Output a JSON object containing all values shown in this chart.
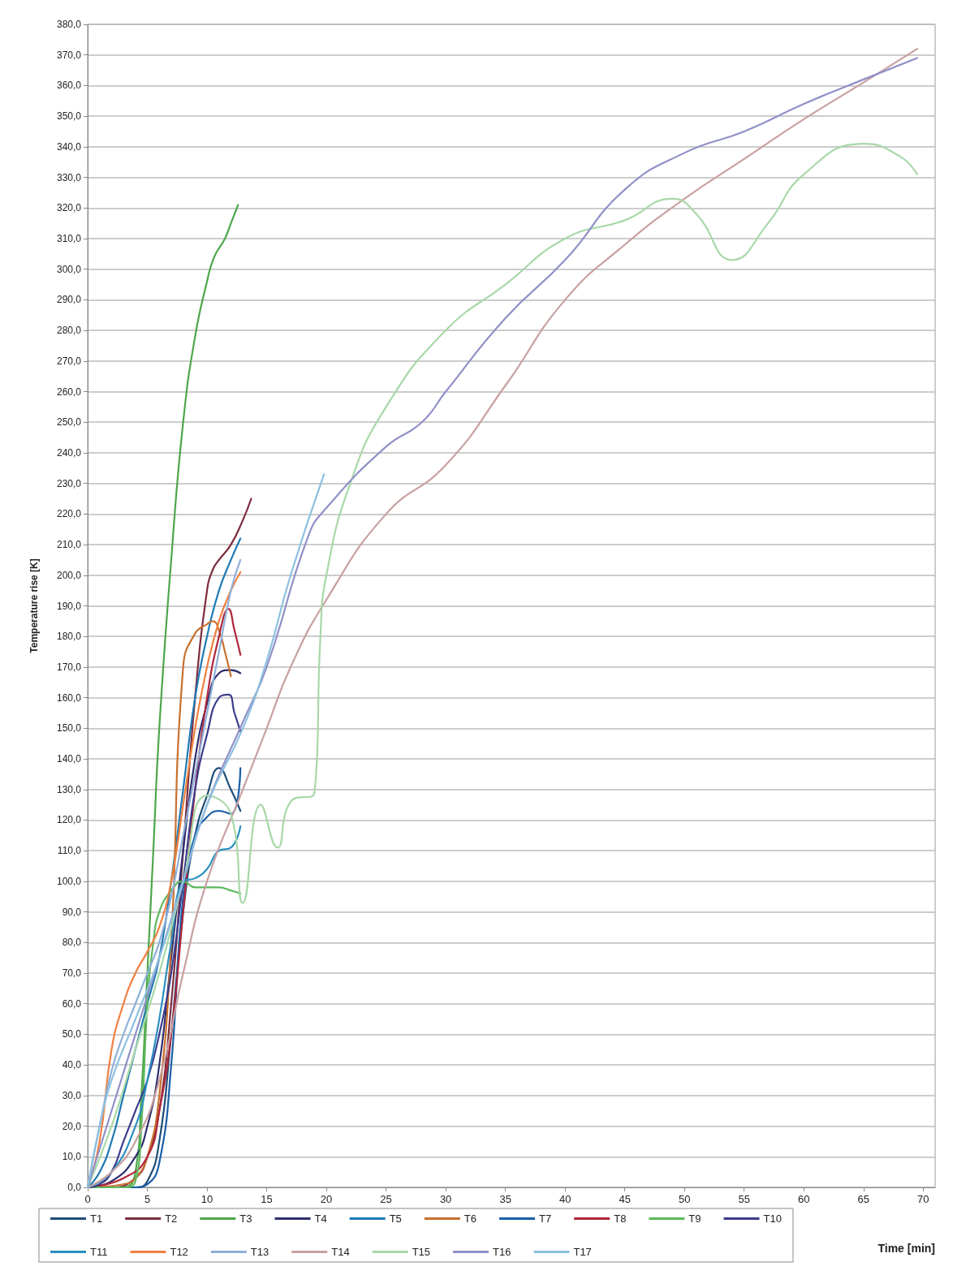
{
  "chart_data": {
    "type": "line",
    "xlabel": "Time [min]",
    "ylabel": "Temperature rise [K]",
    "xlim": [
      0,
      71
    ],
    "xticks": [
      0,
      5,
      10,
      15,
      20,
      25,
      30,
      35,
      40,
      45,
      50,
      55,
      60,
      65,
      70
    ],
    "ylim": [
      0,
      380
    ],
    "yticks": [
      {
        "value": 0,
        "label": "0,0"
      },
      {
        "value": 10,
        "label": "10,0"
      },
      {
        "value": 20,
        "label": "20,0"
      },
      {
        "value": 30,
        "label": "30,0"
      },
      {
        "value": 40,
        "label": "40,0"
      },
      {
        "value": 50,
        "label": "50,0"
      },
      {
        "value": 60,
        "label": "60,0"
      },
      {
        "value": 70,
        "label": "70,0"
      },
      {
        "value": 80,
        "label": "80,0"
      },
      {
        "value": 90,
        "label": "90,0"
      },
      {
        "value": 100,
        "label": "100,0"
      },
      {
        "value": 110,
        "label": "110,0"
      },
      {
        "value": 120,
        "label": "120,0"
      },
      {
        "value": 130,
        "label": "130,0"
      },
      {
        "value": 140,
        "label": "140,0"
      },
      {
        "value": 150,
        "label": "150,0"
      },
      {
        "value": 160,
        "label": "160,0"
      },
      {
        "value": 170,
        "label": "170,0"
      },
      {
        "value": 180,
        "label": "180,0"
      },
      {
        "value": 190,
        "label": "190,0"
      },
      {
        "value": 200,
        "label": "200,0"
      },
      {
        "value": 210,
        "label": "210,0"
      },
      {
        "value": 220,
        "label": "220,0"
      },
      {
        "value": 230,
        "label": "230,0"
      },
      {
        "value": 240,
        "label": "240,0"
      },
      {
        "value": 250,
        "label": "250,0"
      },
      {
        "value": 260,
        "label": "260,0"
      },
      {
        "value": 270,
        "label": "270,0"
      },
      {
        "value": 280,
        "label": "280,0"
      },
      {
        "value": 290,
        "label": "290,0"
      },
      {
        "value": 300,
        "label": "300,0"
      },
      {
        "value": 310,
        "label": "310,0"
      },
      {
        "value": 320,
        "label": "320,0"
      },
      {
        "value": 330,
        "label": "330,0"
      },
      {
        "value": 340,
        "label": "340,0"
      },
      {
        "value": 350,
        "label": "350,0"
      },
      {
        "value": 360,
        "label": "360,0"
      },
      {
        "value": 370,
        "label": "370,0"
      },
      {
        "value": 380,
        "label": "380,0"
      }
    ],
    "grid": "y",
    "legend": "bottom",
    "marker": "none",
    "line_style": "solid",
    "series": [
      {
        "name": "T1",
        "color": "#1f4e79",
        "x": [
          0,
          4,
          5,
          6,
          7,
          8,
          9,
          10,
          11,
          12,
          12.8
        ],
        "values": [
          0,
          0,
          2,
          15,
          50,
          90,
          115,
          128,
          137,
          130,
          123
        ]
      },
      {
        "name": "T2",
        "color": "#7b2c3e",
        "x": [
          0,
          2,
          4,
          5,
          6,
          7,
          8,
          9,
          10,
          10.5,
          11,
          12,
          13,
          13.7
        ],
        "values": [
          0,
          0,
          3,
          10,
          25,
          60,
          110,
          160,
          195,
          202,
          205,
          210,
          218,
          225
        ]
      },
      {
        "name": "T3",
        "color": "#4ea64a",
        "x": [
          0,
          3,
          4,
          4.5,
          5,
          5.5,
          6,
          7,
          8,
          9,
          10,
          10.6,
          11.5,
          12,
          12.6
        ],
        "values": [
          0,
          0,
          5,
          30,
          70,
          110,
          150,
          205,
          250,
          278,
          296,
          304,
          310,
          315,
          321
        ]
      },
      {
        "name": "T4",
        "color": "#2e2e6e",
        "x": [
          0,
          2,
          4,
          5,
          6,
          7,
          8,
          9,
          10,
          11,
          12,
          12.8
        ],
        "values": [
          0,
          2,
          10,
          20,
          40,
          75,
          110,
          140,
          158,
          168,
          169,
          168
        ]
      },
      {
        "name": "T5",
        "color": "#1f7ab5",
        "x": [
          0,
          1,
          2,
          3,
          4,
          5,
          6,
          7,
          8,
          9,
          10,
          11,
          12,
          12.8
        ],
        "values": [
          0,
          5,
          15,
          30,
          45,
          60,
          75,
          100,
          130,
          160,
          180,
          195,
          205,
          212
        ]
      },
      {
        "name": "T6",
        "color": "#c8702e",
        "x": [
          0,
          3,
          4,
          5,
          6,
          7,
          8,
          9,
          10,
          10.5,
          11,
          11.5,
          12
        ],
        "values": [
          0,
          1,
          3,
          10,
          30,
          80,
          170,
          181,
          184,
          185,
          182,
          175,
          167
        ]
      },
      {
        "name": "T7",
        "color": "#1a5ea8",
        "x": [
          0,
          4,
          5,
          6,
          7,
          8,
          9,
          10,
          11,
          12,
          12.8
        ],
        "values": [
          0,
          0,
          1,
          8,
          40,
          95,
          115,
          121,
          123,
          122,
          137
        ]
      },
      {
        "name": "T8",
        "color": "#b0263a",
        "x": [
          0,
          3,
          5,
          6,
          7,
          8,
          9,
          10,
          11,
          11.8,
          12.3,
          12.8
        ],
        "values": [
          0,
          3,
          10,
          25,
          50,
          90,
          130,
          160,
          180,
          189,
          182,
          174
        ]
      },
      {
        "name": "T9",
        "color": "#5cb85c",
        "x": [
          0,
          3,
          4,
          4.5,
          5,
          5.5,
          6,
          7,
          8,
          9,
          10,
          11,
          12,
          12.8
        ],
        "values": [
          0,
          0,
          2,
          20,
          60,
          80,
          90,
          97,
          100,
          98,
          98,
          98,
          97,
          96
        ]
      },
      {
        "name": "T10",
        "color": "#3c3c8c",
        "x": [
          0,
          1,
          2,
          3,
          4,
          5,
          6,
          7,
          8,
          9,
          10,
          11,
          11.8,
          12.3,
          12.8
        ],
        "values": [
          0,
          1,
          5,
          15,
          25,
          35,
          50,
          70,
          100,
          130,
          148,
          160,
          161,
          155,
          149
        ]
      },
      {
        "name": "T11",
        "color": "#2a8fc0",
        "x": [
          0,
          2,
          4,
          5,
          6,
          7,
          8,
          9,
          10,
          11,
          12,
          12.8
        ],
        "values": [
          0,
          5,
          20,
          35,
          55,
          80,
          100,
          101,
          104,
          110,
          111,
          118
        ]
      },
      {
        "name": "T12",
        "color": "#f08040",
        "x": [
          0,
          1,
          2,
          3,
          4,
          5,
          6,
          7,
          8,
          9,
          10,
          11,
          12,
          12.8
        ],
        "values": [
          0,
          15,
          45,
          60,
          70,
          77,
          85,
          100,
          125,
          150,
          170,
          185,
          195,
          201
        ]
      },
      {
        "name": "T13",
        "color": "#8fb0d8",
        "x": [
          0,
          1,
          2,
          3,
          4,
          5,
          6,
          7,
          8,
          9,
          10,
          11,
          12,
          12.8
        ],
        "values": [
          0,
          20,
          38,
          50,
          60,
          70,
          80,
          95,
          115,
          135,
          155,
          175,
          195,
          205
        ]
      },
      {
        "name": "T14",
        "color": "#c8a0a0",
        "x": [
          0,
          2,
          4,
          6,
          8,
          10,
          13,
          15,
          17,
          20,
          25,
          30,
          35,
          40,
          45,
          50,
          55,
          60,
          65,
          69.5
        ],
        "values": [
          0,
          5,
          15,
          35,
          70,
          100,
          130,
          150,
          170,
          192,
          220,
          236,
          262,
          290,
          308,
          323,
          336,
          349,
          361,
          372
        ]
      },
      {
        "name": "T15",
        "color": "#a8d8a8",
        "x": [
          0,
          2,
          4,
          6,
          8,
          10,
          12,
          13,
          14.5,
          15.9,
          17,
          19,
          19.5,
          20,
          22,
          25,
          30,
          35,
          40,
          45,
          49,
          51,
          54,
          57,
          60,
          65,
          68,
          69.5
        ],
        "values": [
          0,
          20,
          45,
          70,
          100,
          128,
          122,
          93,
          125,
          111,
          126,
          129,
          180,
          200,
          230,
          255,
          280,
          295,
          310,
          316,
          323,
          318,
          303,
          315,
          331,
          341,
          337,
          331
        ]
      },
      {
        "name": "T16",
        "color": "#9090c8",
        "x": [
          0,
          2,
          4,
          6,
          8,
          10,
          13,
          15,
          18.5,
          20,
          25,
          28,
          30,
          35,
          40,
          45,
          50,
          55,
          60,
          65,
          69.5
        ],
        "values": [
          0,
          25,
          50,
          75,
          100,
          125,
          152,
          170,
          213,
          222,
          242,
          250,
          260,
          284,
          303,
          326,
          338,
          345,
          354,
          362,
          369
        ]
      },
      {
        "name": "T17",
        "color": "#8cc0e0",
        "x": [
          0,
          1,
          2,
          4,
          6,
          8,
          10,
          13,
          15,
          17,
          19.8
        ],
        "values": [
          0,
          20,
          35,
          55,
          75,
          100,
          125,
          150,
          172,
          200,
          233
        ]
      }
    ]
  }
}
